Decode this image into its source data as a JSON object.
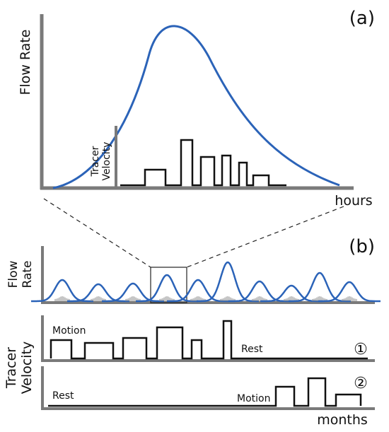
{
  "panels": {
    "a": {
      "tag": "(a)",
      "y_label": "Flow Rate",
      "x_label": "hours",
      "inset_label_line1": "Tracer",
      "inset_label_line2": "Velocity"
    },
    "b": {
      "tag": "(b)",
      "flow_label_line1": "Flow",
      "flow_label_line2": "Rate",
      "velocity_label_line1": "Tracer",
      "velocity_label_line2": "Velocity",
      "x_label": "months",
      "scenario1": {
        "marker": "①",
        "motion_label": "Motion",
        "rest_label": "Rest"
      },
      "scenario2": {
        "marker": "②",
        "motion_label": "Motion",
        "rest_label": "Rest"
      }
    }
  },
  "colors": {
    "curve": "#2b63b8",
    "axis": "#7a7a7a",
    "trace": "#111111"
  }
}
